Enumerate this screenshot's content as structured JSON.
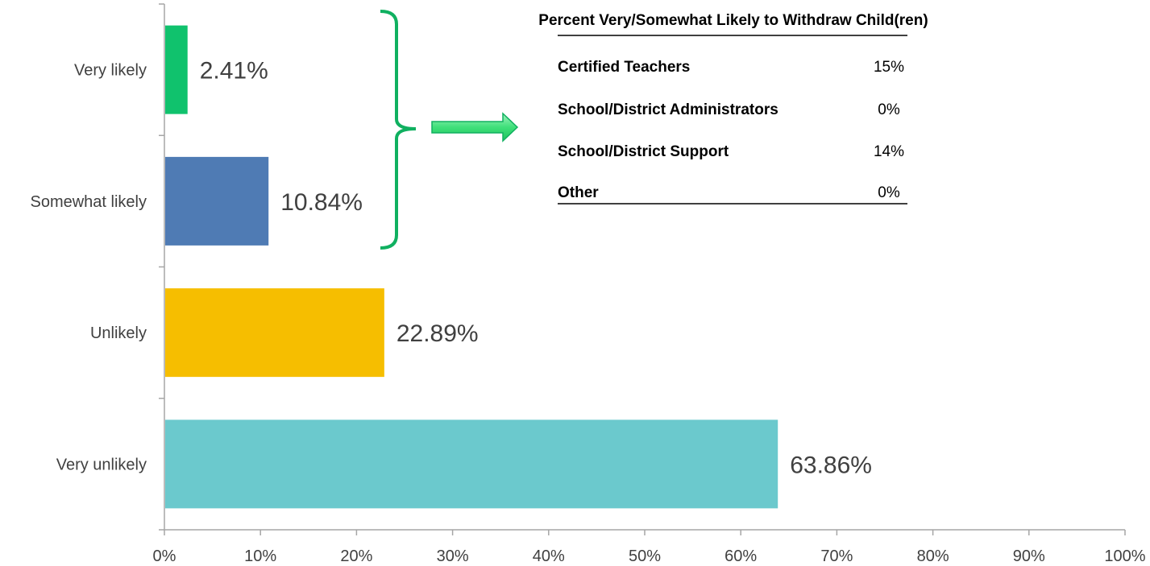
{
  "chart_data": {
    "type": "bar",
    "orientation": "horizontal",
    "categories": [
      "Very likely",
      "Somewhat likely",
      "Unlikely",
      "Very unlikely"
    ],
    "values": [
      2.41,
      10.84,
      22.89,
      63.86
    ],
    "data_labels": [
      "2.41%",
      "10.84%",
      "22.89%",
      "63.86%"
    ],
    "colors": [
      "#10c26d",
      "#4f7bb4",
      "#f6be00",
      "#6bc9cd"
    ],
    "xlim": [
      0,
      100
    ],
    "xticks": [
      "0%",
      "10%",
      "20%",
      "30%",
      "40%",
      "50%",
      "60%",
      "70%",
      "80%",
      "90%",
      "100%"
    ],
    "grid": false,
    "annotation": {
      "bracket_color": "#10b060",
      "arrow_color": "#3ee07a",
      "table": {
        "title": "Percent Very/Somewhat Likely to Withdraw Child(ren)",
        "rows": [
          {
            "label": "Certified Teachers",
            "value": "15%"
          },
          {
            "label": "School/District Administrators",
            "value": "0%"
          },
          {
            "label": "School/District Support",
            "value": "14%"
          },
          {
            "label": "Other",
            "value": "0%"
          }
        ]
      }
    }
  }
}
